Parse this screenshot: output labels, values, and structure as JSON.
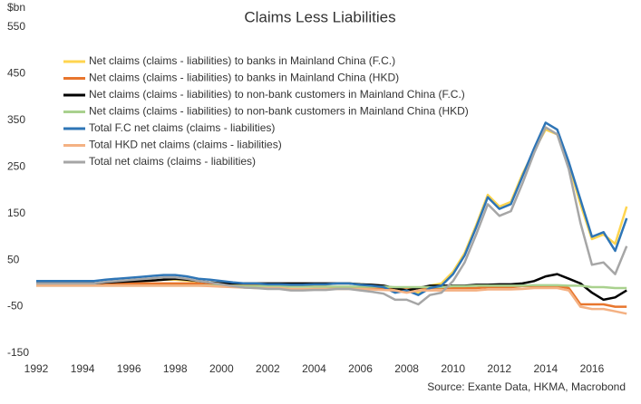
{
  "chart_data": {
    "type": "line",
    "title": "Claims Less Liabilities",
    "y_label": "$bn",
    "source": "Source: Exante Data, HKMA,  Macrobond",
    "xlim": [
      1992,
      2018
    ],
    "xticks": [
      1992,
      1994,
      1996,
      1998,
      2000,
      2002,
      2004,
      2006,
      2008,
      2010,
      2012,
      2014,
      2016
    ],
    "ylim": [
      -150,
      550
    ],
    "yticks": [
      -150,
      -50,
      50,
      150,
      250,
      350,
      450,
      550
    ],
    "grid": false,
    "x": [
      1992,
      1992.5,
      1993,
      1993.5,
      1994,
      1994.5,
      1995,
      1995.5,
      1996,
      1996.5,
      1997,
      1997.5,
      1998,
      1998.5,
      1999,
      1999.5,
      2000,
      2000.5,
      2001,
      2001.5,
      2002,
      2002.5,
      2003,
      2003.5,
      2004,
      2004.5,
      2005,
      2005.5,
      2006,
      2006.5,
      2007,
      2007.5,
      2008,
      2008.5,
      2009,
      2009.5,
      2010,
      2010.5,
      2011,
      2011.5,
      2012,
      2012.5,
      2013,
      2013.5,
      2014,
      2014.5,
      2015,
      2015.5,
      2016,
      2016.5,
      2017,
      2017.5
    ],
    "series": [
      {
        "name": "Net claims (claims - liabilities) to banks in Mainland China (F.C.)",
        "color": "#ffd54f",
        "values": [
          0,
          0,
          0,
          0,
          0,
          0,
          2,
          3,
          4,
          5,
          6,
          8,
          8,
          6,
          4,
          2,
          0,
          0,
          -2,
          -2,
          -3,
          -3,
          -3,
          -3,
          -2,
          -2,
          0,
          0,
          -2,
          -4,
          -5,
          -15,
          -10,
          -20,
          -5,
          0,
          25,
          65,
          125,
          190,
          165,
          175,
          235,
          285,
          330,
          320,
          255,
          170,
          95,
          105,
          85,
          165
        ]
      },
      {
        "name": "Net claims (claims - liabilities) to banks in Mainland China (HKD)",
        "color": "#e8762d",
        "values": [
          0,
          0,
          0,
          0,
          0,
          0,
          0,
          0,
          0,
          0,
          0,
          0,
          0,
          0,
          0,
          0,
          -2,
          -3,
          -3,
          -4,
          -5,
          -5,
          -6,
          -6,
          -7,
          -7,
          -8,
          -8,
          -8,
          -9,
          -10,
          -10,
          -10,
          -10,
          -10,
          -10,
          -10,
          -10,
          -10,
          -8,
          -8,
          -8,
          -6,
          -6,
          -6,
          -6,
          -10,
          -45,
          -45,
          -45,
          -50,
          -50
        ]
      },
      {
        "name": "Net claims (claims - liabilities) to non-bank customers in Mainland China (F.C.)",
        "color": "#000000",
        "values": [
          0,
          0,
          0,
          0,
          0,
          0,
          2,
          3,
          4,
          5,
          6,
          8,
          10,
          8,
          5,
          2,
          0,
          0,
          0,
          0,
          0,
          0,
          0,
          0,
          0,
          0,
          0,
          0,
          -2,
          -3,
          -5,
          -10,
          -15,
          -10,
          -5,
          -5,
          -5,
          -5,
          -3,
          -3,
          -2,
          -2,
          0,
          5,
          15,
          20,
          10,
          0,
          -20,
          -35,
          -30,
          -15
        ]
      },
      {
        "name": "Net claims (claims - liabilities) to non-bank customers in Mainland China (HKD)",
        "color": "#a9d18e",
        "values": [
          -5,
          -5,
          -5,
          -5,
          -5,
          -5,
          -5,
          -5,
          -5,
          -5,
          -5,
          -5,
          -5,
          -5,
          -5,
          -5,
          -5,
          -5,
          -6,
          -6,
          -6,
          -6,
          -7,
          -7,
          -7,
          -7,
          -7,
          -7,
          -7,
          -7,
          -7,
          -8,
          -8,
          -8,
          -8,
          -8,
          -6,
          -6,
          -5,
          -5,
          -5,
          -5,
          -5,
          -4,
          -4,
          -4,
          -5,
          -5,
          -8,
          -8,
          -10,
          -10
        ]
      },
      {
        "name": "Total F.C net claims (claims - liabilities)",
        "color": "#2e75b6",
        "values": [
          5,
          5,
          5,
          5,
          5,
          5,
          8,
          10,
          12,
          14,
          16,
          18,
          18,
          15,
          10,
          8,
          5,
          2,
          0,
          0,
          -2,
          -2,
          -3,
          -3,
          -2,
          -2,
          0,
          0,
          -3,
          -5,
          -8,
          -20,
          -15,
          -25,
          -10,
          -5,
          20,
          60,
          120,
          185,
          160,
          170,
          230,
          290,
          345,
          330,
          260,
          180,
          100,
          110,
          70,
          140
        ]
      },
      {
        "name": "Total HKD net claims (claims - liabilities)",
        "color": "#f4b183",
        "values": [
          -5,
          -5,
          -5,
          -5,
          -5,
          -5,
          -5,
          -5,
          -5,
          -5,
          -5,
          -5,
          -5,
          -5,
          -5,
          -6,
          -7,
          -8,
          -9,
          -10,
          -10,
          -10,
          -12,
          -12,
          -12,
          -12,
          -12,
          -12,
          -12,
          -13,
          -14,
          -15,
          -20,
          -15,
          -15,
          -15,
          -15,
          -15,
          -15,
          -13,
          -13,
          -13,
          -12,
          -10,
          -10,
          -10,
          -15,
          -50,
          -55,
          -55,
          -60,
          -65
        ]
      },
      {
        "name": "Total net claims (claims - liabilities)",
        "color": "#a6a6a6",
        "values": [
          0,
          0,
          0,
          0,
          0,
          0,
          3,
          5,
          7,
          9,
          11,
          13,
          13,
          10,
          5,
          2,
          -2,
          -6,
          -9,
          -10,
          -12,
          -12,
          -15,
          -15,
          -14,
          -14,
          -12,
          -12,
          -15,
          -18,
          -22,
          -35,
          -35,
          -45,
          -25,
          -20,
          5,
          45,
          105,
          170,
          145,
          155,
          215,
          280,
          335,
          320,
          245,
          130,
          40,
          45,
          20,
          80
        ]
      }
    ]
  }
}
